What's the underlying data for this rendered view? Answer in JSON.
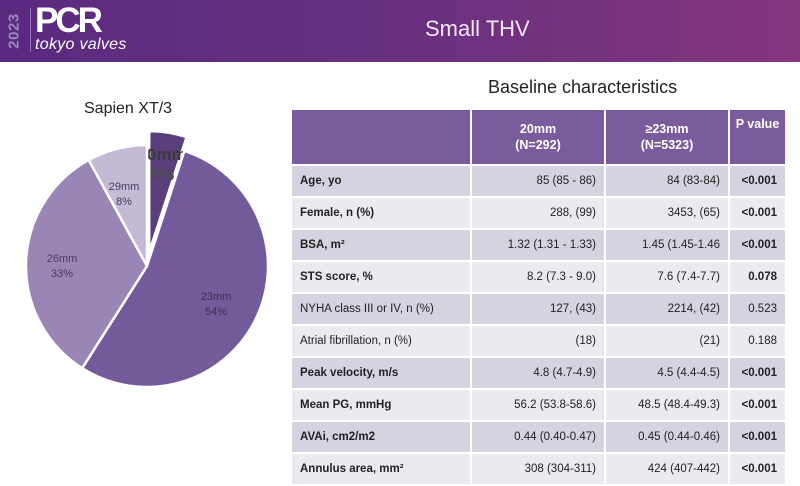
{
  "header": {
    "logo_year": "2023",
    "logo_brand": "PCR",
    "logo_subtitle": "tokyo valves",
    "title": "Small THV"
  },
  "colors": {
    "header_start": "#5a2a80",
    "header_end": "#86357f",
    "table_header": "#7a5c9c",
    "row_odd": "#d6d2e0",
    "row_even": "#eceaf1"
  },
  "subtitle": "Baseline characteristics",
  "chart_data": {
    "type": "pie",
    "title": "Sapien XT/3",
    "start": "12 o'clock, clockwise",
    "slices": [
      {
        "label": "20mm",
        "value": 5,
        "pct_label": "5%",
        "color": "#5b3f7d",
        "exploded": true
      },
      {
        "label": "23mm",
        "value": 54,
        "pct_label": "54%",
        "color": "#735a9a",
        "exploded": false
      },
      {
        "label": "26mm",
        "value": 33,
        "pct_label": "33%",
        "color": "#9a86b6",
        "exploded": false
      },
      {
        "label": "29mm",
        "value": 8,
        "pct_label": "8%",
        "color": "#c4bad5",
        "exploded": false
      }
    ]
  },
  "table": {
    "headers": [
      "",
      "20mm\n(N=292)",
      "≥23mm\n(N=5323)",
      "P value"
    ],
    "header_lines": [
      [
        "",
        ""
      ],
      [
        "20mm",
        "(N=292)"
      ],
      [
        "≥23mm",
        "(N=5323)"
      ],
      [
        "P value",
        ""
      ]
    ],
    "rows": [
      {
        "label": "Age, yo",
        "v20": "85  (85 - 86)",
        "v23": "84 (83-84)",
        "p": "<0.001",
        "label_bold": true,
        "p_bold": true
      },
      {
        "label": "Female, n (%)",
        "v20": "288, (99)",
        "v23": "3453, (65)",
        "p": "<0.001",
        "label_bold": true,
        "p_bold": true
      },
      {
        "label": "BSA, m²",
        "v20": "1.32 (1.31 - 1.33)",
        "v23": "1.45 (1.45-1.46",
        "p": "<0.001",
        "label_bold": true,
        "p_bold": true
      },
      {
        "label": "STS score, %",
        "v20": "8.2 (7.3 - 9.0)",
        "v23": "7.6 (7.4-7.7)",
        "p": "0.078",
        "label_bold": true,
        "p_bold": true
      },
      {
        "label": "NYHA class III or IV, n (%)",
        "v20": "127, (43)",
        "v23": "2214, (42)",
        "p": "0.523",
        "label_bold": false,
        "p_bold": false
      },
      {
        "label": "Atrial fibrillation, n (%)",
        "v20": "(18)",
        "v23": "(21)",
        "p": "0.188",
        "label_bold": false,
        "p_bold": false
      },
      {
        "label": "Peak velocity, m/s",
        "v20": "4.8 (4.7-4.9)",
        "v23": "4.5 (4.4-4.5)",
        "p": "<0.001",
        "label_bold": true,
        "p_bold": true
      },
      {
        "label": "Mean PG, mmHg",
        "v20": "56.2 (53.8-58.6)",
        "v23": "48.5 (48.4-49.3)",
        "p": "<0.001",
        "label_bold": true,
        "p_bold": true
      },
      {
        "label": "AVAi, cm2/m2",
        "v20": "0.44 (0.40-0.47)",
        "v23": "0.45 (0.44-0.46)",
        "p": "<0.001",
        "label_bold": true,
        "p_bold": true
      },
      {
        "label": "Annulus area, mm²",
        "v20": "308 (304-311)",
        "v23": "424 (407-442)",
        "p": "<0.001",
        "label_bold": true,
        "p_bold": true
      }
    ]
  }
}
